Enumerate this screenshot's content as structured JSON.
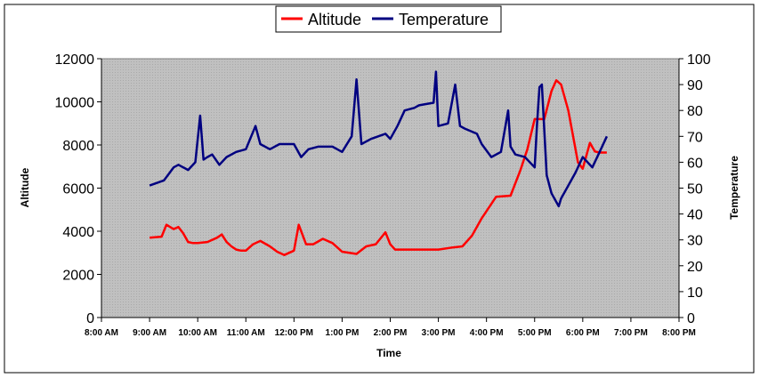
{
  "chart_data": {
    "type": "line",
    "title": "",
    "xlabel": "Time",
    "ylabel_left": "Altitude",
    "ylabel_right": "Temperature",
    "x_ticks": [
      "8:00 AM",
      "9:00 AM",
      "10:00 AM",
      "11:00 AM",
      "12:00 PM",
      "1:00 PM",
      "2:00 PM",
      "3:00 PM",
      "4:00 PM",
      "5:00 PM",
      "6:00 PM",
      "7:00 PM",
      "8:00 PM"
    ],
    "xlim_hours": [
      8,
      20
    ],
    "y_left_ticks": [
      "0",
      "2000",
      "4000",
      "6000",
      "8000",
      "10000",
      "12000"
    ],
    "ylim_left": [
      0,
      12000
    ],
    "y_right_ticks": [
      "0",
      "10",
      "20",
      "30",
      "40",
      "50",
      "60",
      "70",
      "80",
      "90",
      "100"
    ],
    "ylim_right": [
      0,
      100
    ],
    "legend": {
      "position": "top-center",
      "items": [
        "Altitude",
        "Temperature"
      ]
    },
    "plot_background": "#c0c0c0",
    "grid": false,
    "series": [
      {
        "name": "Altitude",
        "axis": "left",
        "color": "#ff0000",
        "x": [
          9.0,
          9.25,
          9.35,
          9.5,
          9.6,
          9.7,
          9.8,
          9.9,
          10.0,
          10.2,
          10.4,
          10.5,
          10.6,
          10.7,
          10.8,
          10.9,
          11.0,
          11.15,
          11.3,
          11.5,
          11.65,
          11.8,
          12.0,
          12.1,
          12.25,
          12.4,
          12.6,
          12.8,
          13.0,
          13.3,
          13.5,
          13.7,
          13.9,
          14.0,
          14.1,
          14.3,
          14.6,
          14.9,
          15.0,
          15.3,
          15.5,
          15.7,
          15.9,
          16.2,
          16.5,
          16.7,
          16.85,
          17.0,
          17.2,
          17.35,
          17.45,
          17.55,
          17.7,
          17.9,
          18.0,
          18.15,
          18.25,
          18.35,
          18.5
        ],
        "values": [
          3700,
          3750,
          4300,
          4100,
          4200,
          3900,
          3500,
          3450,
          3450,
          3500,
          3700,
          3850,
          3500,
          3300,
          3150,
          3100,
          3100,
          3400,
          3550,
          3300,
          3050,
          2900,
          3100,
          4300,
          3400,
          3400,
          3650,
          3450,
          3050,
          2950,
          3300,
          3400,
          3950,
          3400,
          3150,
          3150,
          3150,
          3150,
          3150,
          3250,
          3300,
          3800,
          4600,
          5600,
          5650,
          6800,
          7800,
          9200,
          9200,
          10500,
          11000,
          10800,
          9600,
          7200,
          6900,
          8100,
          7700,
          7650,
          7650
        ]
      },
      {
        "name": "Temperature",
        "axis": "right",
        "color": "#000080",
        "x": [
          9.0,
          9.3,
          9.5,
          9.6,
          9.8,
          9.95,
          10.05,
          10.12,
          10.2,
          10.3,
          10.45,
          10.6,
          10.8,
          11.0,
          11.2,
          11.3,
          11.5,
          11.7,
          12.0,
          12.15,
          12.3,
          12.5,
          12.8,
          13.0,
          13.2,
          13.3,
          13.4,
          13.6,
          13.9,
          14.0,
          14.15,
          14.3,
          14.5,
          14.6,
          14.9,
          14.95,
          15.0,
          15.2,
          15.35,
          15.45,
          15.55,
          15.8,
          15.9,
          16.1,
          16.3,
          16.45,
          16.5,
          16.6,
          16.8,
          17.0,
          17.05,
          17.1,
          17.15,
          17.25,
          17.35,
          17.5,
          17.55,
          17.7,
          17.85,
          18.0,
          18.2,
          18.35,
          18.5
        ],
        "values": [
          51,
          53,
          58,
          59,
          57,
          60,
          78,
          61,
          62,
          63,
          59,
          62,
          64,
          65,
          74,
          67,
          65,
          67,
          67,
          62,
          65,
          66,
          66,
          64,
          70,
          92,
          67,
          69,
          71,
          69,
          74,
          80,
          81,
          82,
          83,
          95,
          74,
          75,
          90,
          74,
          73,
          71,
          67,
          62,
          64,
          80,
          66,
          63,
          62,
          58,
          75,
          89,
          90,
          55,
          48,
          43,
          46,
          51,
          56,
          62,
          58,
          64,
          70
        ]
      }
    ]
  }
}
